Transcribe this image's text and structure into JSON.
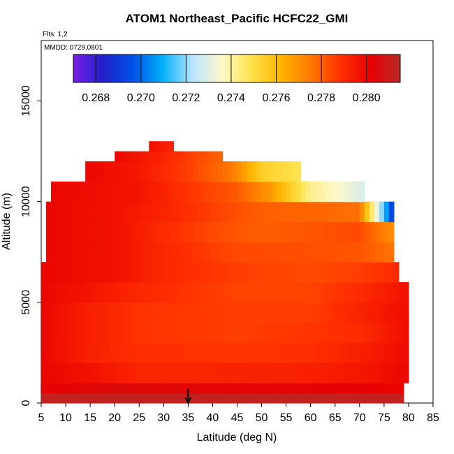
{
  "chart_data": {
    "type": "heatmap",
    "title": "ATOM1 Northeast_Pacific HCFC22_GMI",
    "flights_label": "Flts: 1,2",
    "date_label": "MMDD: 0729,0801",
    "xlabel": "Latitude (deg N)",
    "ylabel": "Altitude (m)",
    "xlim": [
      5,
      85
    ],
    "ylim": [
      0,
      18000
    ],
    "xticks": [
      5,
      10,
      15,
      20,
      25,
      30,
      35,
      40,
      45,
      50,
      55,
      60,
      65,
      70,
      75,
      80,
      85
    ],
    "yticks": [
      0,
      5000,
      10000,
      15000
    ],
    "colorbar": {
      "range": [
        0.267,
        0.2815
      ],
      "ticks": [
        "0.268",
        "0.270",
        "0.272",
        "0.274",
        "0.276",
        "0.278",
        "0.280"
      ],
      "tick_values": [
        0.268,
        0.27,
        0.272,
        0.274,
        0.276,
        0.278,
        0.28
      ],
      "colors": [
        "#7a1ee6",
        "#2020c8",
        "#0050e8",
        "#00b0f8",
        "#b8e4ff",
        "#fff8c8",
        "#ffe24a",
        "#ffb400",
        "#ff7800",
        "#ff3000",
        "#e80000",
        "#b82a2a"
      ]
    },
    "arrow_latitude": 35,
    "grid": false,
    "levels": [
      {
        "alt": [
          0,
          500
        ],
        "lat": [
          5,
          79
        ],
        "profile": [
          [
            5,
            0.2812
          ],
          [
            79,
            0.2812
          ]
        ]
      },
      {
        "alt": [
          500,
          1000
        ],
        "lat": [
          5,
          79
        ],
        "profile": [
          [
            5,
            0.2802
          ],
          [
            20,
            0.2805
          ],
          [
            40,
            0.2803
          ],
          [
            60,
            0.2803
          ],
          [
            79,
            0.2801
          ]
        ]
      },
      {
        "alt": [
          1000,
          2000
        ],
        "lat": [
          5,
          80
        ],
        "profile": [
          [
            5,
            0.28
          ],
          [
            15,
            0.2797
          ],
          [
            25,
            0.2792
          ],
          [
            40,
            0.2792
          ],
          [
            60,
            0.2793
          ],
          [
            72,
            0.2796
          ],
          [
            80,
            0.28
          ]
        ]
      },
      {
        "alt": [
          2000,
          3000
        ],
        "lat": [
          5,
          80
        ],
        "profile": [
          [
            5,
            0.28
          ],
          [
            15,
            0.2793
          ],
          [
            25,
            0.2789
          ],
          [
            45,
            0.2788
          ],
          [
            60,
            0.2789
          ],
          [
            70,
            0.2793
          ],
          [
            80,
            0.2799
          ]
        ]
      },
      {
        "alt": [
          3000,
          4000
        ],
        "lat": [
          5,
          80
        ],
        "profile": [
          [
            5,
            0.28
          ],
          [
            15,
            0.2793
          ],
          [
            25,
            0.2788
          ],
          [
            45,
            0.2786
          ],
          [
            60,
            0.2788
          ],
          [
            70,
            0.279
          ],
          [
            80,
            0.2798
          ]
        ]
      },
      {
        "alt": [
          4000,
          5000
        ],
        "lat": [
          5,
          80
        ],
        "profile": [
          [
            5,
            0.28
          ],
          [
            15,
            0.2793
          ],
          [
            25,
            0.2788
          ],
          [
            45,
            0.2786
          ],
          [
            60,
            0.2786
          ],
          [
            70,
            0.2792
          ],
          [
            80,
            0.2798
          ]
        ]
      },
      {
        "alt": [
          5000,
          6000
        ],
        "lat": [
          5,
          80
        ],
        "profile": [
          [
            5,
            0.28
          ],
          [
            15,
            0.2796
          ],
          [
            25,
            0.2791
          ],
          [
            45,
            0.2785
          ],
          [
            60,
            0.2785
          ],
          [
            70,
            0.279
          ],
          [
            80,
            0.2797
          ]
        ]
      },
      {
        "alt": [
          6000,
          7000
        ],
        "lat": [
          5,
          78
        ],
        "profile": [
          [
            5,
            0.28
          ],
          [
            20,
            0.2797
          ],
          [
            30,
            0.2791
          ],
          [
            45,
            0.2786
          ],
          [
            60,
            0.2784
          ],
          [
            70,
            0.2786
          ],
          [
            78,
            0.279
          ]
        ]
      },
      {
        "alt": [
          7000,
          8000
        ],
        "lat": [
          6,
          77
        ],
        "profile": [
          [
            6,
            0.28
          ],
          [
            20,
            0.2797
          ],
          [
            30,
            0.2791
          ],
          [
            45,
            0.2784
          ],
          [
            60,
            0.2783
          ],
          [
            70,
            0.2782
          ],
          [
            77,
            0.2776
          ]
        ]
      },
      {
        "alt": [
          8000,
          9000
        ],
        "lat": [
          6,
          77
        ],
        "profile": [
          [
            6,
            0.28
          ],
          [
            20,
            0.2797
          ],
          [
            30,
            0.279
          ],
          [
            40,
            0.2784
          ],
          [
            50,
            0.278
          ],
          [
            60,
            0.2782
          ],
          [
            70,
            0.2784
          ],
          [
            77,
            0.277
          ]
        ]
      },
      {
        "alt": [
          9000,
          10000
        ],
        "lat": [
          6,
          77
        ],
        "profile": [
          [
            6,
            0.28
          ],
          [
            20,
            0.2797
          ],
          [
            30,
            0.2792
          ],
          [
            40,
            0.2786
          ],
          [
            50,
            0.278
          ],
          [
            60,
            0.2779
          ],
          [
            70,
            0.2777
          ],
          [
            77,
            0.2688
          ]
        ]
      },
      {
        "alt": [
          10000,
          11000
        ],
        "lat": [
          7,
          71
        ],
        "profile": [
          [
            7,
            0.28
          ],
          [
            25,
            0.2796
          ],
          [
            35,
            0.2788
          ],
          [
            45,
            0.2781
          ],
          [
            52,
            0.2768
          ],
          [
            60,
            0.2742
          ],
          [
            66,
            0.2735
          ],
          [
            71,
            0.2728
          ]
        ]
      },
      {
        "alt": [
          11000,
          12000
        ],
        "lat": [
          14,
          58
        ],
        "profile": [
          [
            14,
            0.28
          ],
          [
            25,
            0.2795
          ],
          [
            35,
            0.2786
          ],
          [
            44,
            0.2775
          ],
          [
            50,
            0.2755
          ],
          [
            58,
            0.2748
          ]
        ]
      },
      {
        "alt": [
          12000,
          12500
        ],
        "lat": [
          20,
          42
        ],
        "profile": [
          [
            20,
            0.28
          ],
          [
            30,
            0.2792
          ],
          [
            42,
            0.2779
          ]
        ]
      },
      {
        "alt": [
          12500,
          13000
        ],
        "lat": [
          27,
          32
        ],
        "profile": [
          [
            27,
            0.2798
          ],
          [
            32,
            0.2792
          ]
        ]
      }
    ]
  }
}
